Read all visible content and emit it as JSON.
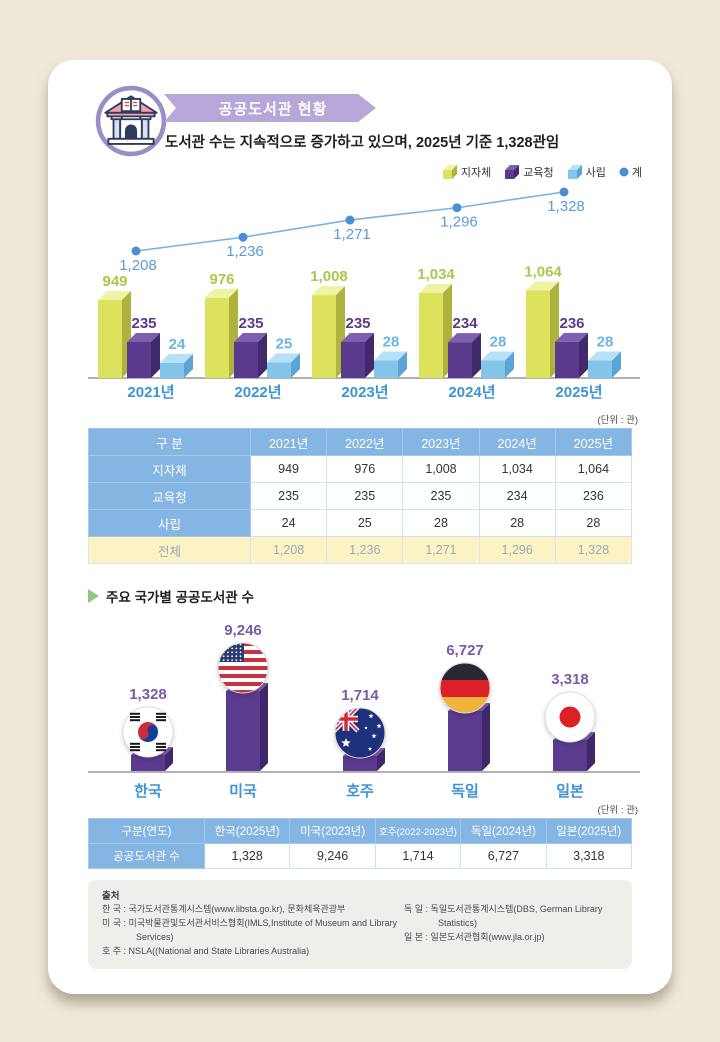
{
  "header": {
    "icon": "library-building-icon",
    "title": "공공도서관 현황",
    "subtitle": "도서관 수는 지속적으로 증가하고 있으며, 2025년 기준 1,328관임"
  },
  "colors": {
    "page_background": "#f0e9d8",
    "banner_purple": "#b6a7d8",
    "table_header_blue": "#85b5e3",
    "total_row_yellow": "#fbf3c4",
    "year_label_blue": "#3e93d4",
    "country_value_purple": "#7b5aa9",
    "baseline_gray": "#b2b2b2",
    "section_marker_green": "#8dc87e"
  },
  "legend": {
    "items": [
      {
        "label": "지자체",
        "shape": "cube",
        "front": "#dce25b",
        "top": "#eef3a5",
        "side": "#aeb33e"
      },
      {
        "label": "교육청",
        "shape": "cube",
        "front": "#5a3a8c",
        "top": "#7d5fb0",
        "side": "#41296b"
      },
      {
        "label": "사립",
        "shape": "cube",
        "front": "#85c5ea",
        "top": "#b7e1f6",
        "side": "#5ba4d3"
      },
      {
        "label": "계",
        "shape": "dot",
        "color": "#4a8fd3"
      }
    ]
  },
  "chart_data": [
    {
      "type": "bar",
      "subtype": "3d-grouped-bars-with-total-line",
      "title": "공공도서관 현황 (연도별)",
      "unit": "관",
      "categories": [
        "2021년",
        "2022년",
        "2023년",
        "2024년",
        "2025년"
      ],
      "series": [
        {
          "name": "지자체",
          "type": "bar",
          "values": [
            949,
            976,
            1008,
            1034,
            1064
          ],
          "labels": [
            "949",
            "976",
            "1,008",
            "1,034",
            "1,064"
          ],
          "front": "#dce25b",
          "top": "#eef3a5",
          "side": "#aeb33e",
          "label_color": "#a9c84e"
        },
        {
          "name": "교육청",
          "type": "bar",
          "values": [
            235,
            235,
            235,
            234,
            236
          ],
          "labels": [
            "235",
            "235",
            "235",
            "234",
            "236"
          ],
          "front": "#5a3a8c",
          "top": "#7d5fb0",
          "side": "#41296b",
          "label_color": "#5a3a8c"
        },
        {
          "name": "사립",
          "type": "bar",
          "values": [
            24,
            25,
            28,
            28,
            28
          ],
          "labels": [
            "24",
            "25",
            "28",
            "28",
            "28"
          ],
          "front": "#85c5ea",
          "top": "#b7e1f6",
          "side": "#5ba4d3",
          "label_color": "#6cb5e2"
        },
        {
          "name": "계",
          "type": "line",
          "values": [
            1208,
            1236,
            1271,
            1296,
            1328
          ],
          "labels": [
            "1,208",
            "1,236",
            "1,271",
            "1,296",
            "1,328"
          ],
          "line_color": "#7fb0dd",
          "dot_color": "#4a8fd3",
          "label_color": "#5b9bd5"
        }
      ],
      "legend_position": "top-right",
      "category_label_color": "#3e93d4"
    },
    {
      "type": "bar",
      "subtype": "3d-columns-with-flag-medallions",
      "title": "주요 국가별 공공도서관 수",
      "unit": "관",
      "categories": [
        "한국",
        "미국",
        "호주",
        "독일",
        "일본"
      ],
      "values": [
        1328,
        9246,
        1714,
        6727,
        3318
      ],
      "labels": [
        "1,328",
        "9,246",
        "1,714",
        "6,727",
        "3,318"
      ],
      "flags": [
        "kr",
        "us",
        "au",
        "de",
        "jp"
      ],
      "bar_colors": {
        "front": "#5b3b8e",
        "top": "#7d5cb0",
        "side": "#3f2769"
      }
    }
  ],
  "table1": {
    "unit": "(단위 : 관)",
    "headers": [
      "구 분",
      "2021년",
      "2022년",
      "2023년",
      "2024년",
      "2025년"
    ],
    "rows": [
      {
        "label": "지자체",
        "values": [
          "949",
          "976",
          "1,008",
          "1,034",
          "1,064"
        ]
      },
      {
        "label": "교육청",
        "values": [
          "235",
          "235",
          "235",
          "234",
          "236"
        ]
      },
      {
        "label": "사립",
        "values": [
          "24",
          "25",
          "28",
          "28",
          "28"
        ]
      }
    ],
    "total_row": {
      "label": "전체",
      "values": [
        "1,208",
        "1,236",
        "1,271",
        "1,296",
        "1,328"
      ]
    }
  },
  "section2": {
    "title": "주요 국가별 공공도서관 수",
    "marker": "green-triangle-icon"
  },
  "table2": {
    "unit": "(단위 : 관)",
    "headers": [
      "구분(연도)",
      "한국(2025년)",
      "미국(2023년)",
      "호주(2022-2023년)",
      "독일(2024년)",
      "일본(2025년)"
    ],
    "row_label": "공공도서관 수",
    "values": [
      "1,328",
      "9,246",
      "1,714",
      "6,727",
      "3,318"
    ]
  },
  "sources": {
    "title": "출처",
    "left": [
      "한 국 : 국가도서관통계시스템(www.libsta.go.kr), 문화체육관광부",
      "미 국 : 미국박물관및도서관서비스협회(IMLS,Institute of Museum and Library Services)",
      "호 주 : NSLA((National and State Libraries Australia)"
    ],
    "right": [
      "독 일 : 독일도서관통계시스템(DBS, German Library Statistics)",
      "일 본 : 일본도서관협회(www.jla.or.jp)"
    ]
  }
}
